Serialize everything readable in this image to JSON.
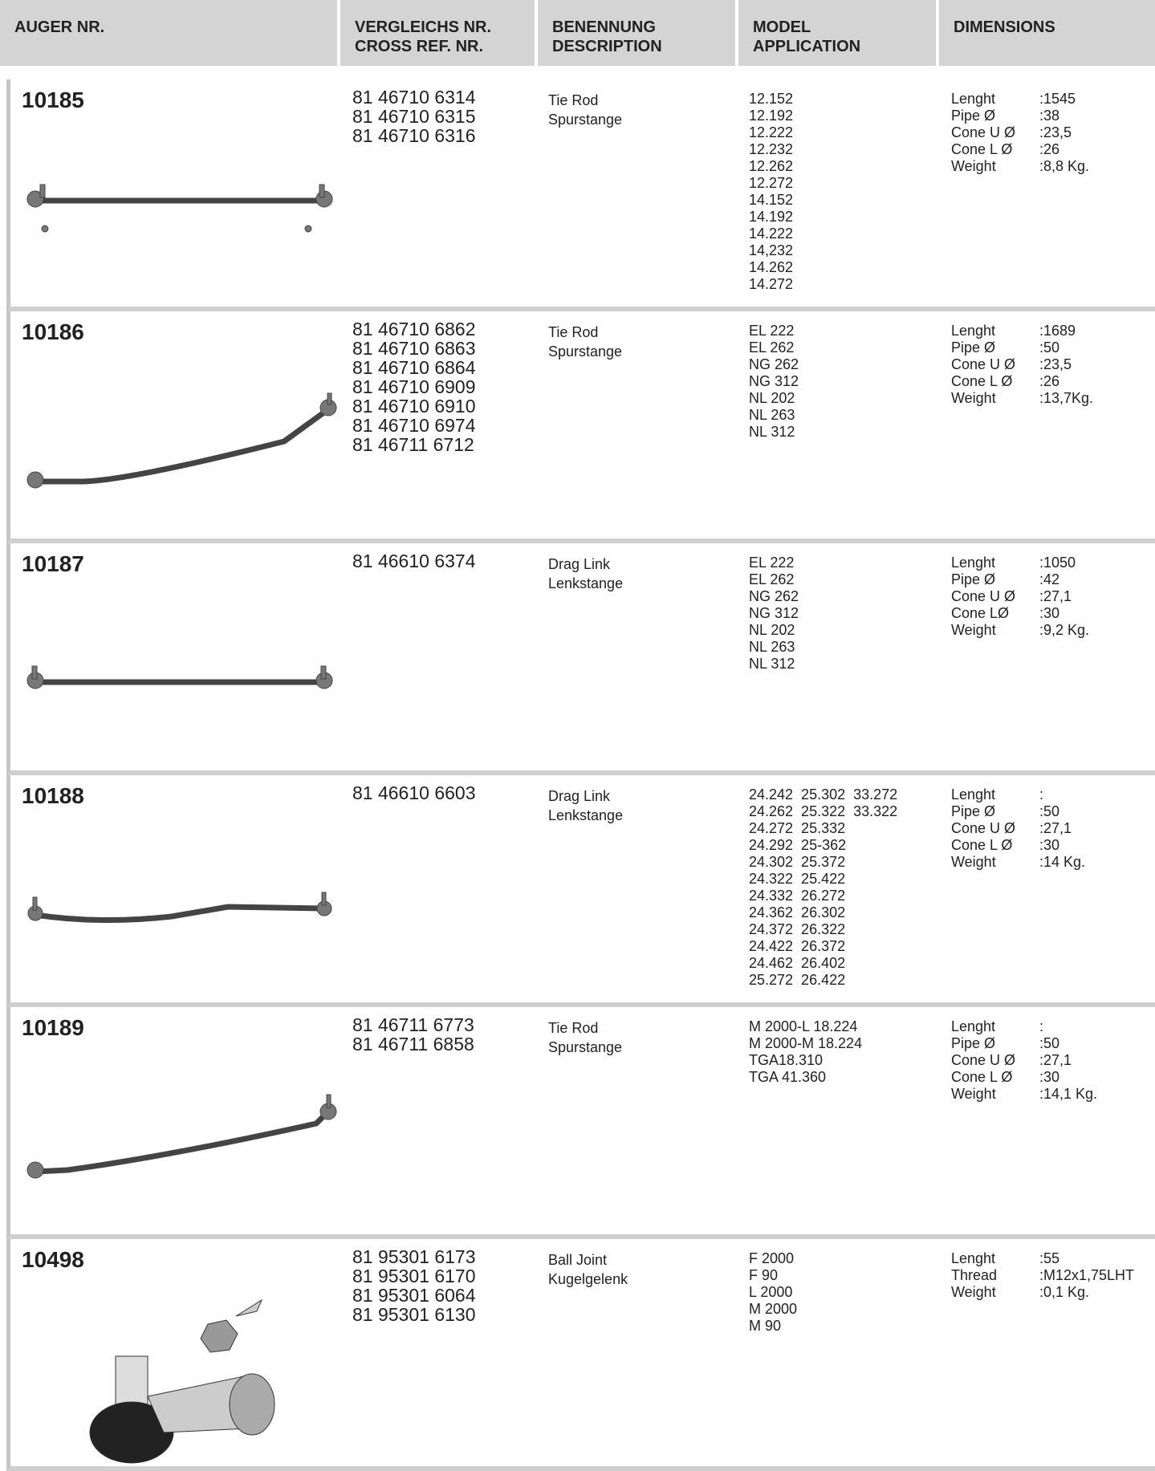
{
  "header": {
    "columns": [
      [
        "AUGER NR."
      ],
      [
        "VERGLEICHS NR.",
        "CROSS REF. NR."
      ],
      [
        "BENENNUNG",
        "DESCRIPTION"
      ],
      [
        "MODEL",
        "APPLICATION"
      ],
      [
        "DIMENSIONS"
      ]
    ]
  },
  "items": [
    {
      "number": "10185",
      "cross_refs": [
        "81 46710 6314",
        "81 46710 6315",
        "81 46710 6316"
      ],
      "description": [
        "Tie Rod",
        "Spurstange"
      ],
      "models": [
        "12.152",
        "12.192",
        "12.222",
        "12.232",
        "12.262",
        "12.272",
        "14.152",
        "14.192",
        "14.222",
        "14,232",
        "14.262",
        "14.272"
      ],
      "dimensions": [
        {
          "label": "Lenght",
          "value": ":1545"
        },
        {
          "label": "Pipe Ø",
          "value": ":38"
        },
        {
          "label": "Cone U Ø",
          "value": ":23,5"
        },
        {
          "label": "Cone L Ø",
          "value": ":26"
        },
        {
          "label": "Weight",
          "value": ":8,8 Kg."
        }
      ]
    },
    {
      "number": "10186",
      "cross_refs": [
        "81 46710 6862",
        "81 46710 6863",
        "81 46710 6864",
        "81 46710 6909",
        "81 46710 6910",
        "81 46710 6974",
        "81 46711 6712"
      ],
      "description": [
        "Tie Rod",
        "Spurstange"
      ],
      "models": [
        "EL 222",
        "EL 262",
        "NG 262",
        "NG 312",
        "NL 202",
        "NL 263",
        "NL 312"
      ],
      "dimensions": [
        {
          "label": "Lenght",
          "value": ":1689"
        },
        {
          "label": "Pipe Ø",
          "value": ":50"
        },
        {
          "label": "Cone U Ø",
          "value": ":23,5"
        },
        {
          "label": "Cone L Ø",
          "value": ":26"
        },
        {
          "label": "Weight",
          "value": ":13,7Kg."
        }
      ]
    },
    {
      "number": "10187",
      "cross_refs": [
        "81 46610 6374"
      ],
      "description": [
        "Drag Link",
        "Lenkstange"
      ],
      "models": [
        "EL 222",
        "EL 262",
        "NG 262",
        "NG 312",
        "NL 202",
        "NL 263",
        "NL 312"
      ],
      "dimensions": [
        {
          "label": "Lenght",
          "value": ":1050"
        },
        {
          "label": "Pipe Ø",
          "value": ":42"
        },
        {
          "label": "Cone U Ø",
          "value": ":27,1"
        },
        {
          "label": "Cone LØ",
          "value": ":30"
        },
        {
          "label": "Weight",
          "value": ":9,2 Kg."
        }
      ]
    },
    {
      "number": "10188",
      "cross_refs": [
        "81 46610 6603"
      ],
      "description": [
        "Drag Link",
        "Lenkstange"
      ],
      "models": [
        "24.242  25.302  33.272",
        "24.262  25.322  33.322",
        "24.272  25.332",
        "24.292  25-362",
        "24.302  25.372",
        "24.322  25.422",
        "24.332  26.272",
        "24.362  26.302",
        "24.372  26.322",
        "24.422  26.372",
        "24.462  26.402",
        "25.272  26.422"
      ],
      "dimensions": [
        {
          "label": "Lenght",
          "value": ":"
        },
        {
          "label": "Pipe Ø",
          "value": ":50"
        },
        {
          "label": "Cone U Ø",
          "value": ":27,1"
        },
        {
          "label": "Cone L Ø",
          "value": ":30"
        },
        {
          "label": "Weight",
          "value": ":14 Kg."
        }
      ]
    },
    {
      "number": "10189",
      "cross_refs": [
        "81 46711 6773",
        "81 46711 6858"
      ],
      "description": [
        "Tie Rod",
        "Spurstange"
      ],
      "models": [
        "M 2000-L 18.224",
        "M 2000-M 18.224",
        "TGA18.310",
        "TGA 41.360"
      ],
      "dimensions": [
        {
          "label": "Lenght",
          "value": ":"
        },
        {
          "label": "Pipe Ø",
          "value": ":50"
        },
        {
          "label": "Cone U Ø",
          "value": ":27,1"
        },
        {
          "label": "Cone L Ø",
          "value": ":30"
        },
        {
          "label": "Weight",
          "value": ":14,1 Kg."
        }
      ]
    },
    {
      "number": "10498",
      "cross_refs": [
        "81 95301 6173",
        "81 95301 6170",
        "81 95301 6064",
        "81 95301 6130"
      ],
      "description": [
        "Ball Joint",
        "Kugelgelenk"
      ],
      "models": [
        "F 2000",
        "F 90",
        "L 2000",
        "M 2000",
        "M 90"
      ],
      "dimensions": [
        {
          "label": "Lenght",
          "value": ":55"
        },
        {
          "label": "Thread",
          "value": ":M12x1,75LHT"
        },
        {
          "label": "Weight",
          "value": ":0,1 Kg."
        }
      ]
    }
  ]
}
